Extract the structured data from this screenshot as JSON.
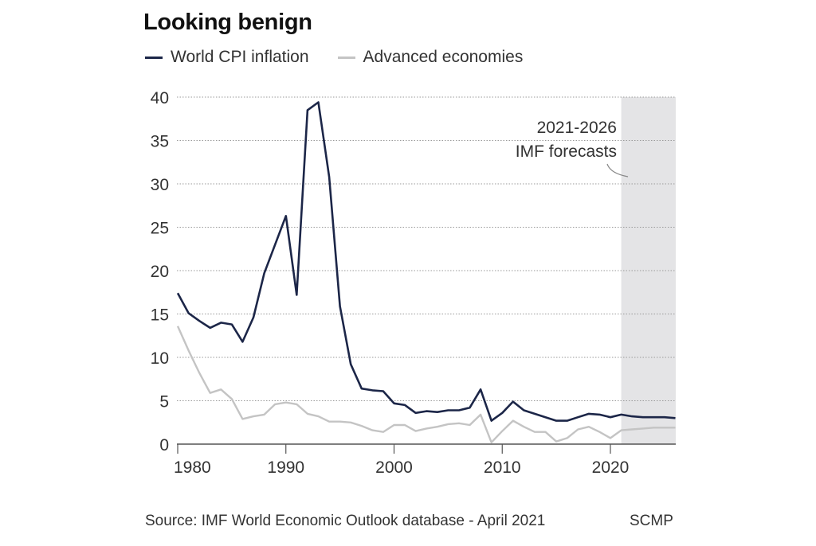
{
  "colors": {
    "world": "#1c2648",
    "advanced": "#c4c4c4",
    "forecast_band": "#e4e4e6",
    "grid": "#9a9a9a",
    "axis": "#555555",
    "text": "#333333"
  },
  "chart_data": {
    "type": "line",
    "title": "Looking benign",
    "xlabel": "",
    "ylabel": "",
    "xlim": [
      1980,
      2026
    ],
    "ylim": [
      0,
      40
    ],
    "grid": true,
    "legend_position": "top-left",
    "x_ticks": [
      1980,
      1990,
      2000,
      2010,
      2020
    ],
    "x_tick_labels": [
      "1980",
      "1990",
      "2000",
      "2010",
      "2020"
    ],
    "y_ticks": [
      0,
      5,
      10,
      15,
      20,
      25,
      30,
      35,
      40
    ],
    "y_tick_labels": [
      "0",
      "5",
      "10",
      "15",
      "20",
      "25",
      "30",
      "35",
      "40"
    ],
    "x": [
      1980,
      1981,
      1982,
      1983,
      1984,
      1985,
      1986,
      1987,
      1988,
      1989,
      1990,
      1991,
      1992,
      1993,
      1994,
      1995,
      1996,
      1997,
      1998,
      1999,
      2000,
      2001,
      2002,
      2003,
      2004,
      2005,
      2006,
      2007,
      2008,
      2009,
      2010,
      2011,
      2012,
      2013,
      2014,
      2015,
      2016,
      2017,
      2018,
      2019,
      2020,
      2021,
      2022,
      2023,
      2024,
      2025,
      2026
    ],
    "series": [
      {
        "name": "World CPI inflation",
        "color": "#1c2648",
        "values": [
          17.4,
          15.1,
          14.2,
          13.4,
          14.0,
          13.8,
          11.8,
          14.6,
          19.7,
          23.0,
          26.3,
          17.2,
          38.5,
          39.4,
          30.8,
          15.9,
          9.2,
          6.4,
          6.2,
          6.1,
          4.7,
          4.5,
          3.6,
          3.8,
          3.7,
          3.9,
          3.9,
          4.2,
          6.3,
          2.7,
          3.6,
          4.9,
          3.9,
          3.5,
          3.1,
          2.7,
          2.7,
          3.1,
          3.5,
          3.4,
          3.1,
          3.4,
          3.2,
          3.1,
          3.1,
          3.1,
          3.0
        ]
      },
      {
        "name": "Advanced economies",
        "color": "#c4c4c4",
        "values": [
          13.6,
          10.8,
          8.2,
          5.9,
          6.3,
          5.2,
          2.9,
          3.2,
          3.4,
          4.6,
          4.8,
          4.6,
          3.5,
          3.2,
          2.6,
          2.6,
          2.5,
          2.1,
          1.6,
          1.4,
          2.2,
          2.2,
          1.5,
          1.8,
          2.0,
          2.3,
          2.4,
          2.2,
          3.4,
          0.2,
          1.5,
          2.7,
          2.0,
          1.4,
          1.4,
          0.3,
          0.7,
          1.7,
          2.0,
          1.4,
          0.7,
          1.6,
          1.7,
          1.8,
          1.9,
          1.9,
          1.9
        ]
      }
    ],
    "annotations": [
      {
        "text_lines": [
          "2021-2026",
          "IMF forecasts"
        ],
        "band": [
          2021,
          2026
        ]
      }
    ]
  },
  "legend": {
    "items": [
      {
        "label": "World CPI inflation"
      },
      {
        "label": "Advanced economies"
      }
    ]
  },
  "footer": {
    "source": "Source: IMF World Economic Outlook database - April 2021",
    "credit": "SCMP"
  }
}
